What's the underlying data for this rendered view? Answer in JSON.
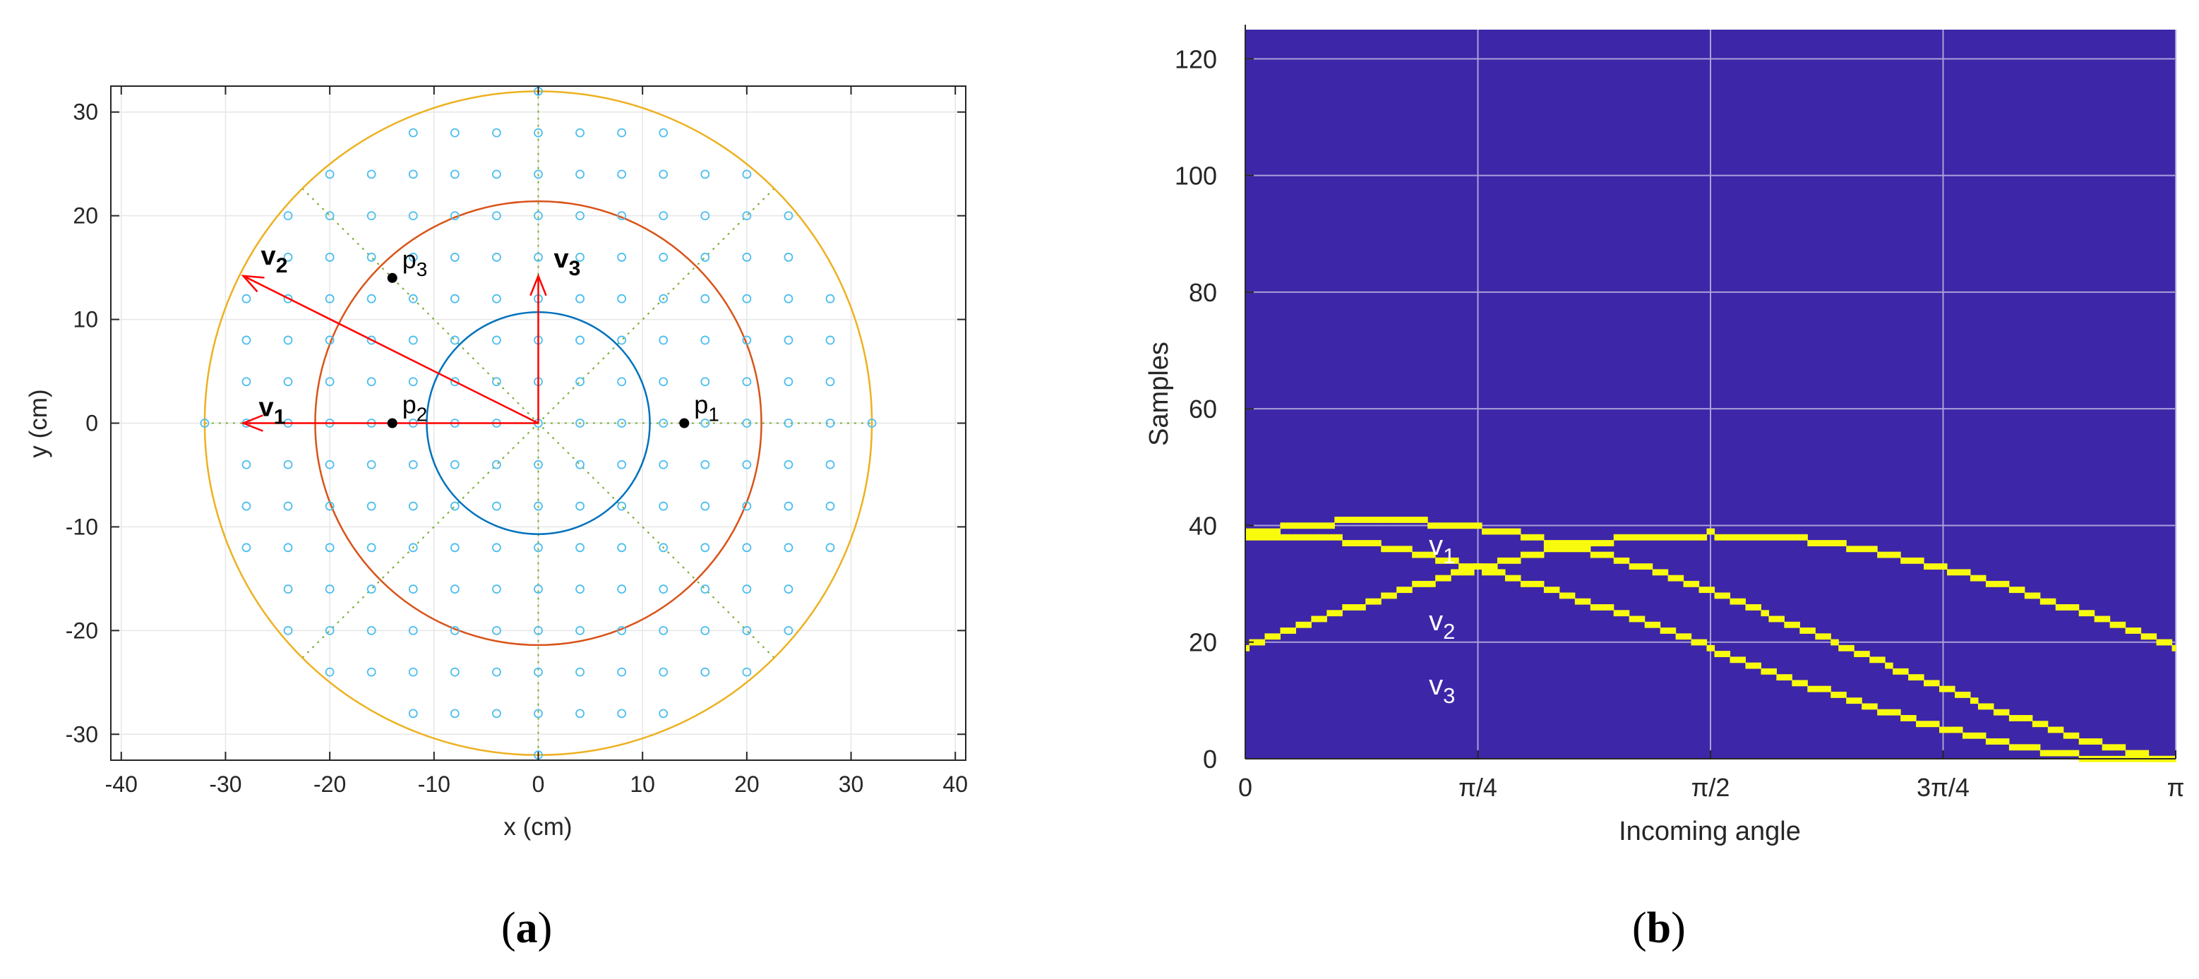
{
  "panels": [
    {
      "id": "a",
      "label_open": "(",
      "label_letter": "a",
      "label_close": ")"
    },
    {
      "id": "b",
      "label_open": "(",
      "label_letter": "b",
      "label_close": ")"
    }
  ],
  "chart_data": [
    {
      "type": "scatter",
      "title": "",
      "xlabel": "x (cm)",
      "ylabel": "y (cm)",
      "xlim": [
        -41,
        41
      ],
      "ylim": [
        -32.5,
        32.5
      ],
      "xticks": [
        -40,
        -30,
        -20,
        -10,
        0,
        10,
        20,
        30,
        40
      ],
      "yticks": [
        -30,
        -20,
        -10,
        0,
        10,
        20,
        30
      ],
      "grid": true,
      "colors": {
        "points": "#4dbeee",
        "inner_circle": "#0072bd",
        "middle_circle": "#d95319",
        "outer_circle": "#edb120",
        "dotted_lines": "#77ac30",
        "vectors": "#ff0000",
        "marked_points": "#000000"
      },
      "points_spacing": 4,
      "points_max_radius": 32,
      "circles": [
        {
          "name": "inner",
          "r": 10.7
        },
        {
          "name": "middle",
          "r": 21.4
        },
        {
          "name": "outer",
          "r": 32
        }
      ],
      "radial_lines_deg": [
        0,
        45,
        90,
        135
      ],
      "radial_line_radius": 32,
      "vectors": [
        {
          "label": "v",
          "sub": "1",
          "x": 28.3,
          "y": 0
        },
        {
          "label": "v",
          "sub": "2",
          "x": 28.3,
          "y": 14.2
        },
        {
          "label": "v",
          "sub": "3",
          "x": 0,
          "y": 14.2
        }
      ],
      "vector_dirs": [
        1,
        -1
      ],
      "marked_points": [
        {
          "label": "p",
          "sub": "1",
          "x": 14,
          "y": 0
        },
        {
          "label": "p",
          "sub": "2",
          "x": -14,
          "y": 0
        },
        {
          "label": "p",
          "sub": "3",
          "x": -14,
          "y": 14
        }
      ]
    },
    {
      "type": "heatmap",
      "title": "",
      "xlabel": "Incoming angle",
      "ylabel": "Samples",
      "xlim": [
        0,
        3.14159
      ],
      "ylim": [
        0,
        125
      ],
      "xticks": [
        0,
        0.7854,
        1.5708,
        2.3562,
        3.14159
      ],
      "xtick_labels": [
        "0",
        "π/4",
        "π/2",
        "3π/4",
        "π"
      ],
      "yticks": [
        0,
        20,
        40,
        60,
        80,
        100,
        120
      ],
      "grid": true,
      "colors": {
        "background": "#3e26a8",
        "trace": "#f9fb0e",
        "grid": "#a8a1d9"
      },
      "n_angles": 120,
      "sample_offset": 19,
      "series": [
        {
          "name": "v",
          "sub": "1",
          "vx": 1.0,
          "vy": 0.0,
          "scale": 19.5
        },
        {
          "name": "v",
          "sub": "2",
          "vx": 0.894,
          "vy": 0.447,
          "scale": 21.8
        },
        {
          "name": "v",
          "sub": "3",
          "vx": 0.0,
          "vy": 1.0,
          "scale": 19.5
        }
      ],
      "annotations": [
        {
          "name": "v",
          "sub": "1",
          "x": 0.62,
          "y": 35
        },
        {
          "name": "v",
          "sub": "2",
          "x": 0.62,
          "y": 22
        },
        {
          "name": "v",
          "sub": "3",
          "x": 0.62,
          "y": 11
        }
      ]
    }
  ]
}
